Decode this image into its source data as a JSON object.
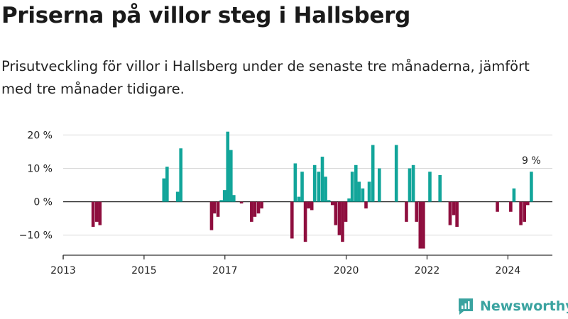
{
  "header": {
    "title": "Priserna på villor steg i Hallsberg",
    "subtitle": "Prisutveckling för villor i Hallsberg under de senaste tre månaderna, jämfört med tre månader tidigare."
  },
  "brand": {
    "name": "Newsworthy"
  },
  "colors": {
    "positive": "#12a59a",
    "negative": "#8e0e3e",
    "grid": "#d9d9d9",
    "axis": "#333333",
    "brand": "#3aa3a0"
  },
  "chart_data": {
    "type": "bar",
    "x_unit": "year",
    "xlim": [
      2013.0,
      2025.1
    ],
    "ylim": [
      -16,
      22
    ],
    "y_ticks": [
      20,
      10,
      0,
      -10
    ],
    "y_tick_labels": [
      "20 %",
      "10 %",
      "0 %",
      "−10 %"
    ],
    "x_ticks": [
      2013,
      2015,
      2017,
      2020,
      2022,
      2024
    ],
    "x_tick_labels": [
      "2013",
      "2015",
      "2017",
      "2020",
      "2022",
      "2024"
    ],
    "annotation": {
      "text": "9 %",
      "x": 2024.58,
      "y": 9
    },
    "x": [
      2013.74,
      2013.83,
      2013.91,
      2015.49,
      2015.57,
      2015.83,
      2015.91,
      2016.67,
      2016.74,
      2016.83,
      2016.91,
      2016.99,
      2017.07,
      2017.15,
      2017.22,
      2017.41,
      2017.66,
      2017.74,
      2017.83,
      2017.91,
      2018.66,
      2018.74,
      2018.83,
      2018.91,
      2018.99,
      2019.07,
      2019.15,
      2019.22,
      2019.32,
      2019.41,
      2019.49,
      2019.57,
      2019.66,
      2019.74,
      2019.83,
      2019.91,
      2019.99,
      2020.07,
      2020.15,
      2020.24,
      2020.32,
      2020.41,
      2020.49,
      2020.57,
      2020.66,
      2020.82,
      2021.24,
      2021.49,
      2021.57,
      2021.66,
      2021.74,
      2021.83,
      2021.91,
      2022.07,
      2022.32,
      2022.57,
      2022.66,
      2022.74,
      2023.74,
      2024.07,
      2024.15,
      2024.32,
      2024.41,
      2024.49,
      2024.58
    ],
    "values": [
      -7.5,
      -6.0,
      -7.0,
      7.0,
      10.5,
      3.0,
      16.0,
      -8.5,
      -3.5,
      -4.5,
      0.5,
      3.5,
      21.0,
      15.5,
      2.0,
      -0.5,
      -6.0,
      -4.5,
      -3.5,
      -2.0,
      -11.0,
      11.5,
      1.5,
      9.0,
      -12.0,
      -2.0,
      -2.5,
      11.0,
      9.0,
      13.5,
      7.5,
      0.5,
      -1.0,
      -7.0,
      -10.0,
      -12.0,
      -6.0,
      1.0,
      9.0,
      11.0,
      6.0,
      4.0,
      -2.0,
      6.0,
      17.0,
      10.0,
      17.0,
      -6.0,
      10.0,
      11.0,
      -6.0,
      -14.0,
      -14.0,
      9.0,
      8.0,
      -7.0,
      -4.0,
      -7.5,
      -3.0,
      -3.0,
      4.0,
      -7.0,
      -6.0,
      -1.0,
      9.0
    ]
  }
}
